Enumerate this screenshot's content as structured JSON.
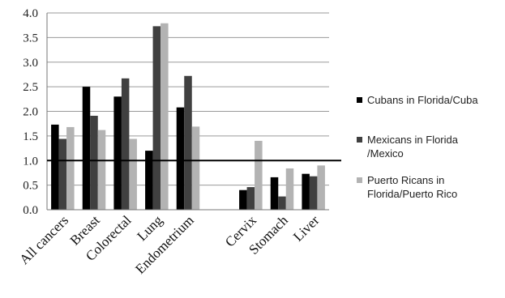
{
  "chart_data": {
    "type": "bar",
    "categories": [
      "All cancers",
      "Breast",
      "Colorectal",
      "Lung",
      "Endometrium",
      "",
      "Cervix",
      "Stomach",
      "Liver"
    ],
    "series": [
      {
        "name": "Cubans in Florida/Cuba",
        "color": "#000000",
        "values": [
          1.73,
          2.5,
          2.3,
          1.2,
          2.08,
          null,
          0.4,
          0.66,
          0.73
        ]
      },
      {
        "name": "Mexicans in Florida\n/Mexico",
        "color": "#404040",
        "values": [
          1.44,
          1.91,
          2.67,
          3.73,
          2.72,
          null,
          0.46,
          0.27,
          0.68
        ]
      },
      {
        "name": "Puerto Ricans in\nFlorida/Puerto Rico",
        "color": "#b3b3b3",
        "values": [
          1.68,
          1.62,
          1.44,
          3.79,
          1.69,
          null,
          1.4,
          0.84,
          0.9
        ]
      }
    ],
    "ylim": [
      0,
      4.0
    ],
    "yticks": [
      "0.0",
      "0.5",
      "1.0",
      "1.5",
      "2.0",
      "2.5",
      "3.0",
      "3.5",
      "4.0"
    ],
    "reference_line": 1.0,
    "grid": true,
    "legend_position": "right",
    "xlabel": "",
    "ylabel": "",
    "title": ""
  }
}
